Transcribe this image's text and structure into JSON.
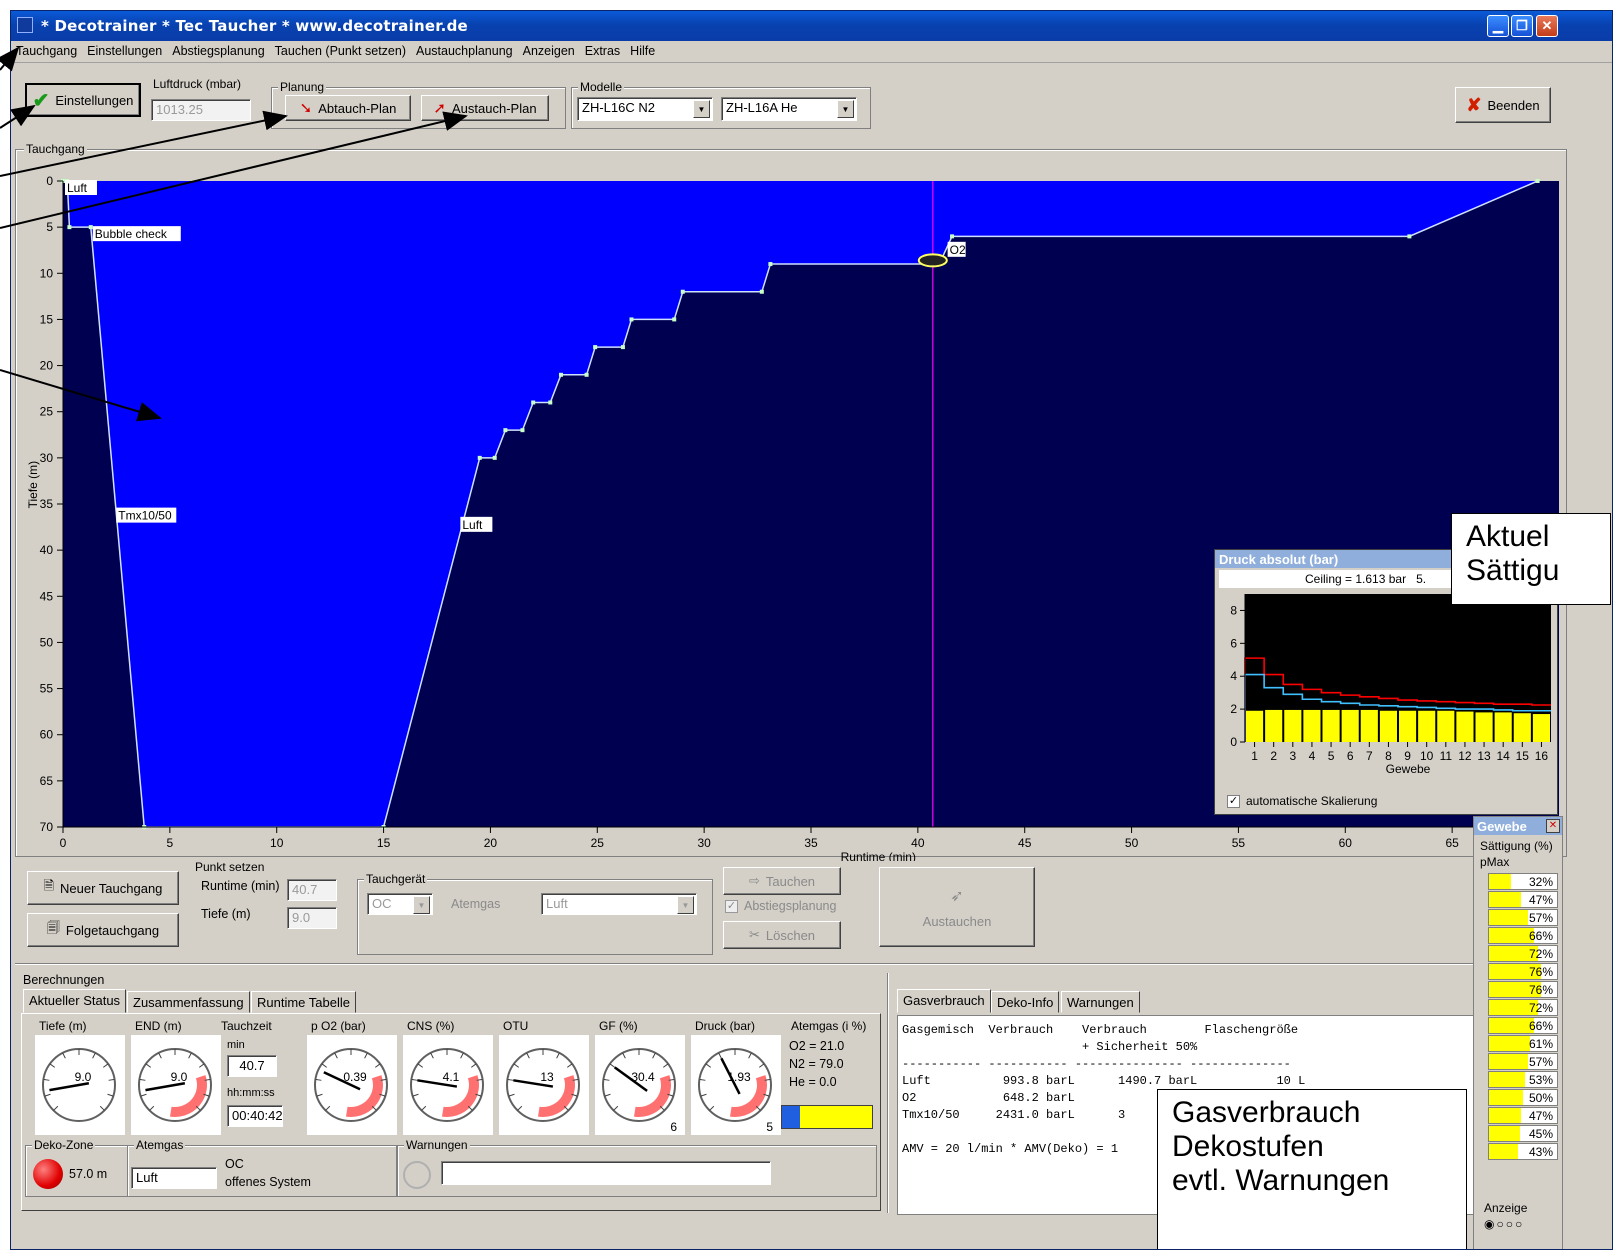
{
  "window": {
    "title": "* Decotrainer * Tec Taucher * www.decotrainer.de"
  },
  "menu": [
    "Tauchgang",
    "Einstellungen",
    "Abstiegsplanung",
    "Tauchen (Punkt setzen)",
    "Austauchplanung",
    "Anzeigen",
    "Extras",
    "Hilfe"
  ],
  "toolbar": {
    "settings_button": "Einstellungen",
    "luftdruck_label": "Luftdruck (mbar)",
    "luftdruck_value": "1013.25",
    "planung_label": "Planung",
    "abtauch_button": "Abtauch-Plan",
    "austauch_button": "Austauch-Plan",
    "modelle_label": "Modelle",
    "model_n2": "ZH-L16C N2",
    "model_he": "ZH-L16A He",
    "beenden_button": "Beenden"
  },
  "dive_panel": {
    "group_label": "Tauchgang"
  },
  "chart_data": {
    "type": "area",
    "xlabel": "Runtime (min)",
    "ylabel": "Tiefe (m)",
    "xlim": [
      0,
      70
    ],
    "ylim": [
      70,
      0
    ],
    "x_ticks": [
      0,
      5,
      10,
      15,
      20,
      25,
      30,
      35,
      40,
      45,
      50,
      55,
      60,
      65
    ],
    "y_ticks": [
      0,
      5,
      10,
      15,
      20,
      25,
      30,
      35,
      40,
      45,
      50,
      55,
      60,
      65,
      70
    ],
    "profile": [
      [
        0,
        0
      ],
      [
        0.2,
        0
      ],
      [
        0.3,
        5
      ],
      [
        1.3,
        5
      ],
      [
        3.8,
        70
      ],
      [
        15,
        70
      ],
      [
        19.5,
        30
      ],
      [
        20.2,
        30
      ],
      [
        20.7,
        27
      ],
      [
        21.5,
        27
      ],
      [
        22,
        24
      ],
      [
        22.8,
        24
      ],
      [
        23.3,
        21
      ],
      [
        24.5,
        21
      ],
      [
        24.9,
        18
      ],
      [
        26.2,
        18
      ],
      [
        26.6,
        15
      ],
      [
        28.6,
        15
      ],
      [
        29,
        12
      ],
      [
        32.7,
        12
      ],
      [
        33.1,
        9
      ],
      [
        41,
        9
      ],
      [
        41.6,
        6
      ],
      [
        63,
        6
      ],
      [
        69,
        0
      ]
    ],
    "cursor_x": 40.7,
    "labels": [
      {
        "text": "Luft",
        "x": 0,
        "y": 0
      },
      {
        "text": "Bubble check",
        "x": 1.3,
        "y": 5
      },
      {
        "text": "Tmx10/50",
        "x": 2.4,
        "y": 35.5
      },
      {
        "text": "Luft",
        "x": 18.5,
        "y": 36.5
      },
      {
        "text": "O2",
        "x": 41.3,
        "y": 6.7
      }
    ]
  },
  "pressure_chart": {
    "title": "Druck absolut (bar)",
    "ceiling": "Ceiling = 1.613 bar",
    "ceiling_extra": "5.",
    "type": "bar",
    "xlabel": "Gewebe",
    "categories": [
      "1",
      "2",
      "3",
      "4",
      "5",
      "6",
      "7",
      "8",
      "9",
      "10",
      "11",
      "12",
      "13",
      "14",
      "15",
      "16"
    ],
    "ylim": [
      0,
      9
    ],
    "y_ticks": [
      0,
      2,
      4,
      6,
      8
    ],
    "series": [
      {
        "name": "",
        "color": "#ffff00",
        "values": [
          1.9,
          1.95,
          1.95,
          1.95,
          1.95,
          1.95,
          1.95,
          1.9,
          1.9,
          1.9,
          1.9,
          1.85,
          1.8,
          1.8,
          1.75,
          1.7
        ]
      },
      {
        "name": "",
        "color": "#ff0000",
        "values": [
          5.1,
          4.1,
          3.5,
          3.2,
          3.0,
          2.85,
          2.75,
          2.65,
          2.55,
          2.5,
          2.45,
          2.4,
          2.35,
          2.3,
          2.3,
          2.25
        ]
      },
      {
        "name": "",
        "color": "#40c0ff",
        "values": [
          4.1,
          3.3,
          2.9,
          2.6,
          2.45,
          2.35,
          2.25,
          2.2,
          2.15,
          2.1,
          2.05,
          2.0,
          2.0,
          1.95,
          1.9,
          1.9
        ]
      }
    ],
    "auto_scale_label": "automatische Skalierung"
  },
  "controls": {
    "neuer_button": "Neuer Tauchgang",
    "folge_button": "Folgetauchgang",
    "punkt_label": "Punkt setzen",
    "runtime_label": "Runtime (min)",
    "runtime_value": "40.7",
    "tiefe_label": "Tiefe (m)",
    "tiefe_value": "9.0",
    "geraet_label": "Tauchgerät",
    "geraet_value": "OC",
    "atemgas_label": "Atemgas",
    "atemgas_value": "Luft",
    "tauchen_button": "Tauchen",
    "abstieg_check": "Abstiegsplanung",
    "loeschen_button": "Löschen",
    "austauchen_button": "Austauchen"
  },
  "berechnungen": {
    "label": "Berechnungen",
    "tabs": [
      "Aktueller Status",
      "Zusammenfassung",
      "Runtime Tabelle"
    ],
    "gauges": [
      {
        "label": "Tiefe (m)",
        "value": "9.0",
        "fraction": 0.13
      },
      {
        "label": "END (m)",
        "value": "9.0",
        "fraction": 0.13
      },
      {
        "label": "p O2 (bar)",
        "value": "0.39",
        "fraction": 0.26
      },
      {
        "label": "CNS (%)",
        "value": "4.1",
        "fraction": 0.2
      },
      {
        "label": "OTU",
        "value": "13",
        "fraction": 0.2
      },
      {
        "label": "GF (%)",
        "value": "30.4",
        "fraction": 0.3,
        "corner": "6"
      },
      {
        "label": "Druck (bar)",
        "value": "1.93",
        "fraction": 0.4,
        "corner": "5"
      }
    ],
    "tauchzeit_label": "Tauchzeit",
    "tauchzeit_unit": "min",
    "tauchzeit_min": "40.7",
    "tauchzeit_unit2": "hh:mm:ss",
    "tauchzeit_hms": "00:40:42",
    "atemgas_label": "Atemgas (i %)",
    "o2": "O2 = 21.0",
    "n2": "N2 = 79.0",
    "he": "He =  0.0",
    "deko_label": "Deko-Zone",
    "deko_value": "57.0 m",
    "atemgas2_label": "Atemgas",
    "atemgas2_value": "Luft",
    "oc": "OC",
    "oc_desc": "offenes System",
    "warnungen_label": "Warnungen"
  },
  "gas_panel": {
    "tabs": [
      "Gasverbrauch",
      "Deko-Info",
      "Warnungen"
    ],
    "lines": [
      "Gasgemisch  Verbrauch    Verbrauch        Flaschengröße",
      "                         + Sicherheit 50%",
      "----------- ----------- --------------- --------------",
      "Luft          993.8 barL      1490.7 barL           10 L",
      "O2            648.2 barL",
      "Tmx10/50     2431.0 barL      3",
      "",
      "AMV = 20 l/min * AMV(Deko) = 1"
    ]
  },
  "gewebe": {
    "title": "Gewebe",
    "sat_label": "Sättigung (%)",
    "pmax_label": "pMax",
    "values": [
      "32%",
      "47%",
      "57%",
      "66%",
      "72%",
      "76%",
      "76%",
      "72%",
      "66%",
      "61%",
      "57%",
      "53%",
      "50%",
      "47%",
      "45%",
      "43%"
    ],
    "fractions": [
      0.32,
      0.47,
      0.57,
      0.66,
      0.72,
      0.76,
      0.76,
      0.72,
      0.66,
      0.61,
      0.57,
      0.53,
      0.5,
      0.47,
      0.45,
      0.43
    ],
    "anzeige_label": "Anzeige"
  },
  "callouts": {
    "top_line1": "Aktuel",
    "top_line2": "Sättigu",
    "bottom_line1": "Gasverbrauch",
    "bottom_line2": "Dekostufen",
    "bottom_line3": "evtl. Warnungen"
  },
  "colors": {
    "surface_blue": "#0000ff",
    "deep_navy": "#000050",
    "cursor": "#ff00ff"
  }
}
